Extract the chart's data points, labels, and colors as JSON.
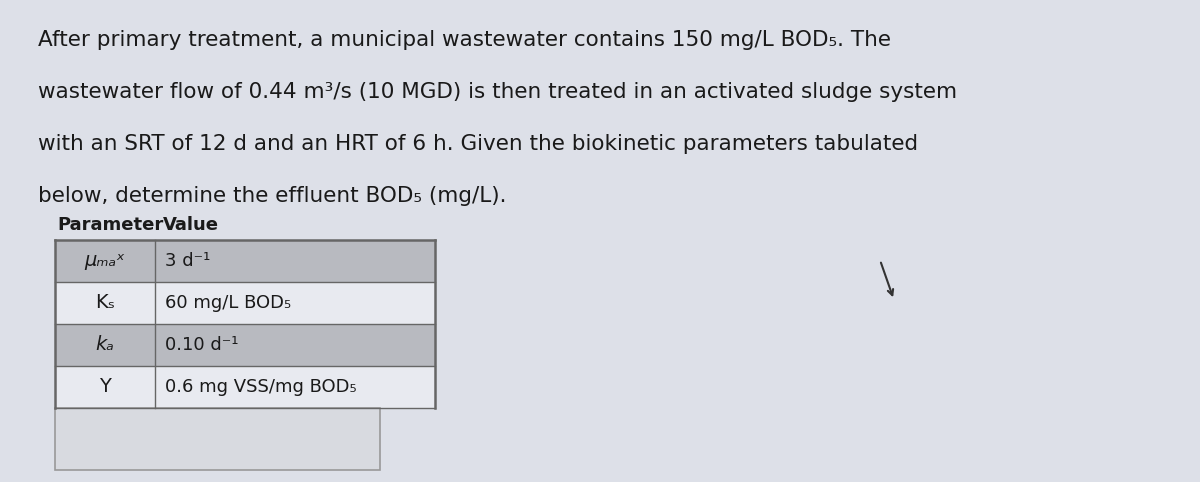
{
  "bg_color": "#c8ccd4",
  "content_bg": "#dde0e8",
  "para_lines": [
    "After primary treatment, a municipal wastewater contains 150 mg/L BOD₅. The",
    "wastewater flow of 0.44 m³/s (10 MGD) is then treated in an activated sludge system",
    "with an SRT of 12 d and an HRT of 6 h. Given the biokinetic parameters tabulated",
    "below, determine the effluent BOD₅ (mg/L)."
  ],
  "col_header_param": "Parameter",
  "col_header_value": "Value",
  "table_rows": [
    {
      "param": "μₘₐˣ",
      "italic": true,
      "value": "3 d⁻¹",
      "shaded": true
    },
    {
      "param": "Kₛ",
      "italic": false,
      "value": "60 mg/L BOD₅",
      "shaded": false
    },
    {
      "param": "kₐ",
      "italic": true,
      "value": "0.10 d⁻¹",
      "shaded": true
    },
    {
      "param": "Y",
      "italic": false,
      "value": "0.6 mg VSS/mg BOD₅",
      "shaded": false
    }
  ],
  "shaded_color": "#b8bac0",
  "unshaded_color": "#e8eaf0",
  "border_color": "#666666",
  "text_color": "#1a1a1a",
  "para_fontsize": 15.5,
  "table_fontsize": 13.0,
  "header_fontsize": 13.0
}
